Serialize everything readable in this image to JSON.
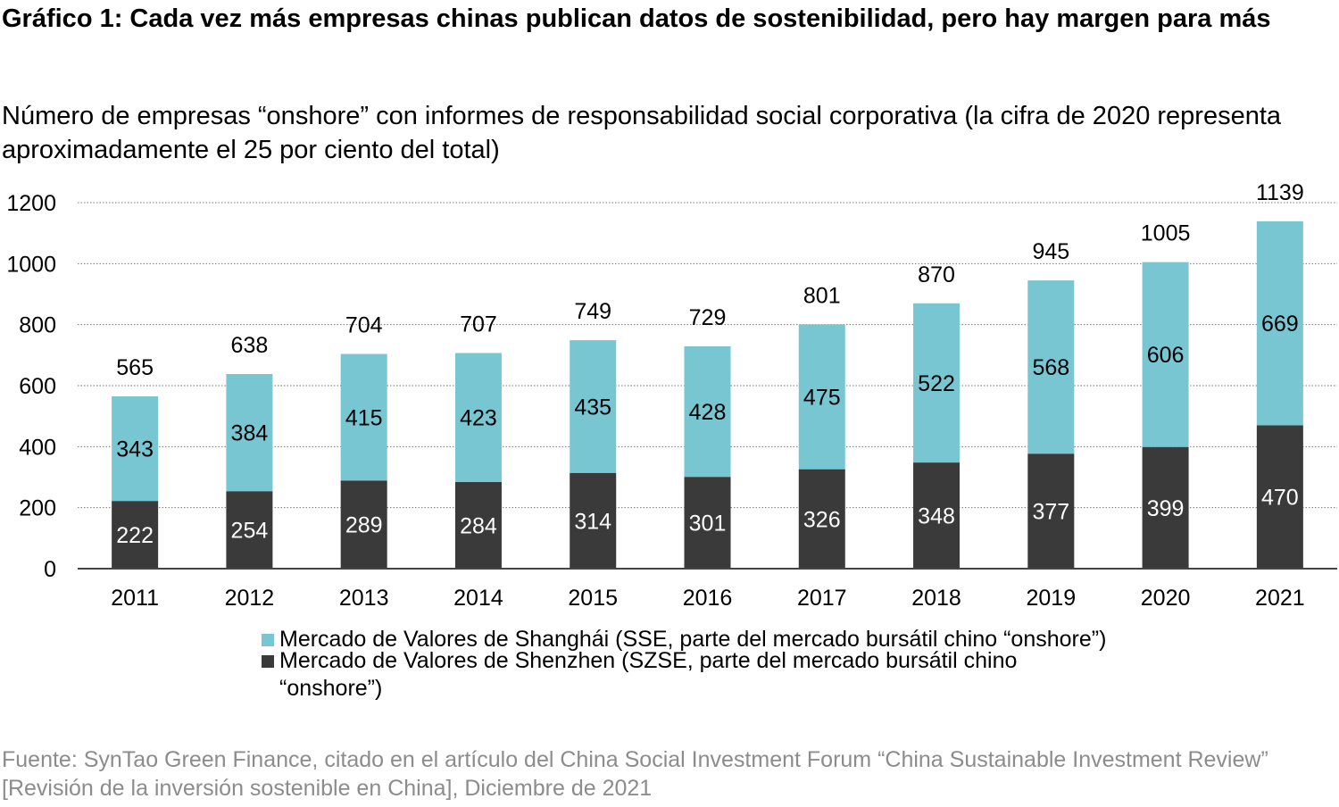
{
  "title": "Gráfico 1: Cada vez más empresas chinas publican datos de sostenibilidad, pero hay margen para más",
  "subtitle": "Número de empresas “onshore” con informes de responsabilidad social corporativa (la cifra de 2020 representa aproximadamente el 25 por ciento del total)",
  "source": "Fuente: SynTao Green Finance, citado en el artículo del China Social Investment Forum “China Sustainable Investment Review” [Revisión de la inversión sostenible en China], Diciembre de 2021",
  "legend": {
    "sse": "Mercado de Valores de Shanghái (SSE, parte del mercado bursátil chino “onshore”)",
    "szse": "Mercado de Valores de Shenzhen (SZSE, parte del mercado bursátil chino “onshore”)"
  },
  "colors": {
    "sse": "#79c6d3",
    "szse": "#3a3a3a",
    "grid": "#777777",
    "axis": "#444444",
    "source_text": "#8c8c8c"
  },
  "chart_data": {
    "type": "bar",
    "stacked": true,
    "categories": [
      "2011",
      "2012",
      "2013",
      "2014",
      "2015",
      "2016",
      "2017",
      "2018",
      "2019",
      "2020",
      "2021"
    ],
    "series": [
      {
        "name": "Mercado de Valores de Shenzhen (SZSE, parte del mercado bursátil chino “onshore”)",
        "key": "szse",
        "values": [
          222,
          254,
          289,
          284,
          314,
          301,
          326,
          348,
          377,
          399,
          470
        ]
      },
      {
        "name": "Mercado de Valores de Shanghái (SSE, parte del mercado bursátil chino “onshore”)",
        "key": "sse",
        "values": [
          343,
          384,
          415,
          423,
          435,
          428,
          475,
          522,
          568,
          606,
          669
        ]
      }
    ],
    "totals": [
      565,
      638,
      704,
      707,
      749,
      729,
      801,
      870,
      945,
      1005,
      1139
    ],
    "ylim": [
      0,
      1200
    ],
    "yticks": [
      0,
      200,
      400,
      600,
      800,
      1000,
      1200
    ],
    "grid": true,
    "legend_position": "bottom",
    "xlabel": "",
    "ylabel": ""
  }
}
